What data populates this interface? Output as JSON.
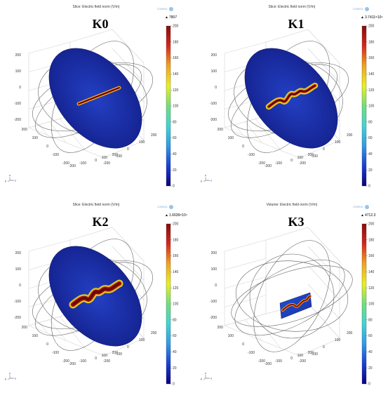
{
  "chart_data": [
    {
      "type": "heatmap",
      "render": "slice",
      "title": "Slice: Electric field norm (V/m)",
      "label": "K0",
      "colorbar": {
        "min": 0,
        "max": 200,
        "ticks": [
          0,
          20,
          40,
          60,
          80,
          100,
          120,
          140,
          160,
          180,
          200
        ],
        "max_marker": "7807"
      },
      "axes": {
        "z_ticks": [
          "200",
          "100",
          "0",
          "-100",
          "-200"
        ],
        "y_ticks": [
          "200",
          "100",
          "0",
          "-100",
          "-200"
        ],
        "x_ticks": [
          "200",
          "100",
          "0",
          "-100",
          "-200"
        ],
        "x_ticks_bottom": [
          "200",
          "100",
          "0",
          "-100",
          "-200"
        ],
        "z_range": [
          -200,
          200
        ],
        "y_range": [
          -200,
          200
        ],
        "x_range": [
          -200,
          200
        ]
      },
      "triad": {
        "x": "x",
        "y": "y",
        "z": "z"
      },
      "logo": "COMSOL"
    },
    {
      "type": "heatmap",
      "render": "slice",
      "title": "Slice: Electric field norm (V/m)",
      "label": "K1",
      "colorbar": {
        "min": 0,
        "max": 200,
        "ticks": [
          0,
          20,
          40,
          60,
          80,
          100,
          120,
          140,
          160,
          180,
          200
        ],
        "max_marker": "3.7411×10⁴"
      },
      "axes": {
        "z_ticks": [
          "200",
          "100",
          "0",
          "-100",
          "-200"
        ],
        "y_ticks": [
          "200",
          "100",
          "0",
          "-100",
          "-200"
        ],
        "x_ticks": [
          "200",
          "100",
          "0",
          "-100",
          "-200"
        ],
        "x_ticks_bottom": [
          "200",
          "100",
          "0",
          "-100",
          "-200"
        ],
        "z_range": [
          -200,
          200
        ],
        "y_range": [
          -200,
          200
        ],
        "x_range": [
          -200,
          200
        ]
      },
      "triad": {
        "x": "x",
        "y": "y",
        "z": "z"
      },
      "logo": "COMSOL"
    },
    {
      "type": "heatmap",
      "render": "slice",
      "title": "Slice: Electric field norm (V/m)",
      "label": "K2",
      "colorbar": {
        "min": 0,
        "max": 200,
        "ticks": [
          0,
          20,
          40,
          60,
          80,
          100,
          120,
          140,
          160,
          180,
          200
        ],
        "max_marker": "1.6639×10⁴"
      },
      "axes": {
        "z_ticks": [
          "200",
          "100",
          "0",
          "-100",
          "-200"
        ],
        "y_ticks": [
          "200",
          "100",
          "0",
          "-100",
          "-200"
        ],
        "x_ticks": [
          "200",
          "100",
          "0",
          "-100",
          "-200"
        ],
        "x_ticks_bottom": [
          "200",
          "100",
          "0",
          "-100",
          "-200"
        ],
        "z_range": [
          -200,
          200
        ],
        "y_range": [
          -200,
          200
        ],
        "x_range": [
          -200,
          200
        ]
      },
      "triad": {
        "x": "x",
        "y": "y",
        "z": "z"
      },
      "logo": "COMSOL"
    },
    {
      "type": "heatmap",
      "render": "volume",
      "title": "Volume: Electric field norm (V/m)",
      "label": "K3",
      "colorbar": {
        "min": 0,
        "max": 200,
        "ticks": [
          0,
          20,
          40,
          60,
          80,
          100,
          120,
          140,
          160,
          180,
          200
        ],
        "max_marker": "4712.3"
      },
      "axes": {
        "z_ticks": [
          "200",
          "100",
          "0",
          "-100",
          "-200"
        ],
        "y_ticks": [
          "200",
          "100",
          "0",
          "-100",
          "-200"
        ],
        "x_ticks": [
          "200",
          "100",
          "0",
          "-100",
          "-200"
        ],
        "x_ticks_bottom": [
          "200",
          "100",
          "0",
          "-100",
          "-200"
        ],
        "z_range": [
          -200,
          200
        ],
        "y_range": [
          -200,
          200
        ],
        "x_range": [
          -200,
          200
        ]
      },
      "triad": {
        "x": "x",
        "y": "y",
        "z": "z"
      },
      "logo": "COMSOL"
    }
  ],
  "colors": {
    "colormap": [
      "#0b0080",
      "#1a3fd6",
      "#2f9be8",
      "#3fd5d5",
      "#6fe07a",
      "#e9f11d",
      "#f3a41b",
      "#d8261b",
      "#8a0b0b"
    ],
    "slice_base": "#1f2fa8",
    "slice_edge": "#0c1660",
    "grid": "#d3d3d3",
    "loops": "#555555"
  }
}
